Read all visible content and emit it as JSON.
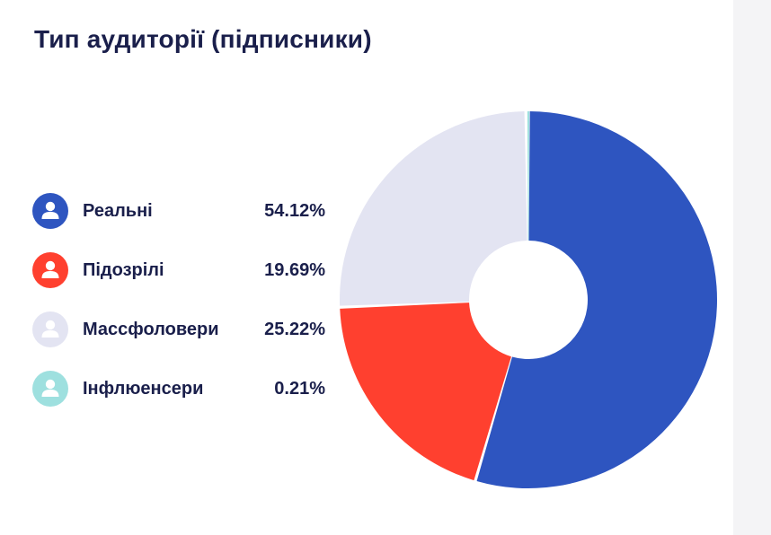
{
  "card": {
    "title": "Тип аудиторії (підписники)"
  },
  "chart_data": {
    "type": "pie",
    "title": "Тип аудиторії (підписники)",
    "unit": "%",
    "slices": [
      {
        "label": "Реальні",
        "value": 54.12,
        "display": "54.12%",
        "color": "#2e55c0",
        "icon": "user-icon"
      },
      {
        "label": "Підозрілі",
        "value": 19.69,
        "display": "19.69%",
        "color": "#ff402f",
        "icon": "user-icon"
      },
      {
        "label": "Массфоловери",
        "value": 25.22,
        "display": "25.22%",
        "color": "#e3e4f2",
        "icon": "user-icon"
      },
      {
        "label": "Інфлюенсери",
        "value": 0.21,
        "display": "0.21%",
        "color": "#9ee0df",
        "icon": "user-icon"
      }
    ],
    "legend_position": "left"
  }
}
